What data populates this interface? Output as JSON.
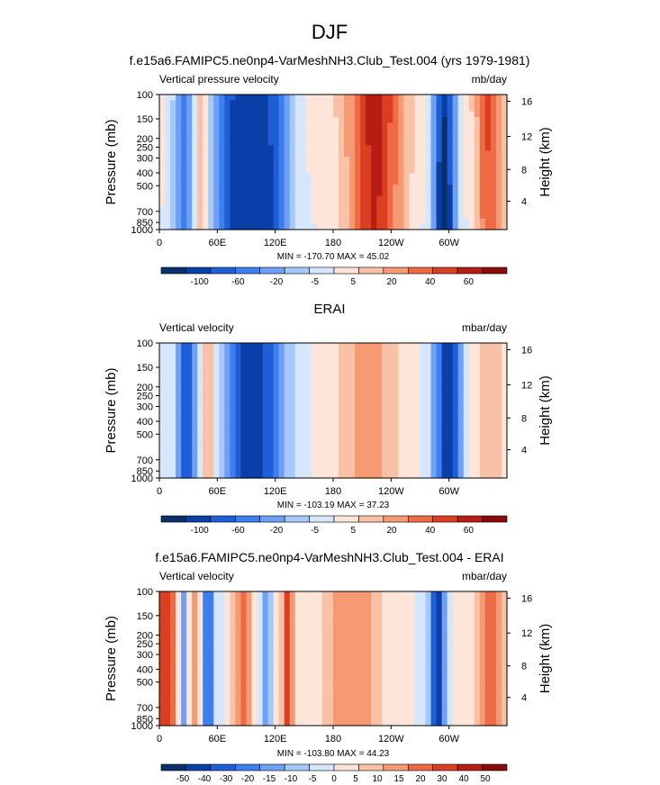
{
  "page_title": "DJF",
  "colors": {
    "diverging_14": [
      "#08306b",
      "#0b3fa8",
      "#1f5fd6",
      "#3d7ff0",
      "#6ea0f5",
      "#a6c8fa",
      "#d6e6fc",
      "#fde5d9",
      "#f9c1a6",
      "#f59a72",
      "#ee6b45",
      "#dc3e22",
      "#b61e13",
      "#8a0b0b"
    ]
  },
  "chart_data": [
    {
      "type": "heatmap",
      "title": "f.e15a6.FAMIPC5.ne0np4-VarMeshNH3.Club_Test.004 (yrs 1979-1981)",
      "left_label": "Vertical pressure velocity",
      "right_label": "mb/day",
      "ylabel": "Pressure (mb)",
      "y2label": "Height (km)",
      "y_ticks": [
        "100",
        "150",
        "200",
        "250",
        "300",
        "400",
        "500",
        "700",
        "850",
        "1000"
      ],
      "y2_ticks": [
        "16",
        "12",
        "8",
        "4"
      ],
      "x_ticks": [
        "0",
        "60E",
        "120E",
        "180",
        "120W",
        "60W"
      ],
      "minmax": "MIN = -170.70  MAX =  45.02",
      "colorbar_labels": [
        "-100",
        "-60",
        "-20",
        "-5",
        "5",
        "20",
        "40",
        "60"
      ]
    },
    {
      "type": "heatmap",
      "title": "ERAI",
      "left_label": "Vertical velocity",
      "right_label": "mbar/day",
      "ylabel": "Pressure (mb)",
      "y2label": "Height (km)",
      "y_ticks": [
        "100",
        "150",
        "200",
        "250",
        "300",
        "400",
        "500",
        "700",
        "850",
        "1000"
      ],
      "y2_ticks": [
        "16",
        "12",
        "8",
        "4"
      ],
      "x_ticks": [
        "0",
        "60E",
        "120E",
        "180",
        "120W",
        "60W"
      ],
      "minmax": "MIN = -103.19  MAX =  37.23",
      "colorbar_labels": [
        "-100",
        "-60",
        "-20",
        "-5",
        "5",
        "20",
        "40",
        "60"
      ]
    },
    {
      "type": "heatmap",
      "title": "f.e15a6.FAMIPC5.ne0np4-VarMeshNH3.Club_Test.004 - ERAI",
      "left_label": "Vertical velocity",
      "right_label": "mbar/day",
      "ylabel": "Pressure (mb)",
      "y2label": "Height (km)",
      "y_ticks": [
        "100",
        "150",
        "200",
        "250",
        "300",
        "400",
        "500",
        "700",
        "850",
        "1000"
      ],
      "y2_ticks": [
        "16",
        "12",
        "8",
        "4"
      ],
      "x_ticks": [
        "0",
        "60E",
        "120E",
        "180",
        "120W",
        "60W"
      ],
      "minmax": "MIN = -103.80  MAX =  44.23",
      "colorbar_labels": [
        "-50",
        "-40",
        "-30",
        "-20",
        "-15",
        "-10",
        "-5",
        "0",
        "5",
        "10",
        "15",
        "20",
        "30",
        "40",
        "50"
      ]
    }
  ]
}
